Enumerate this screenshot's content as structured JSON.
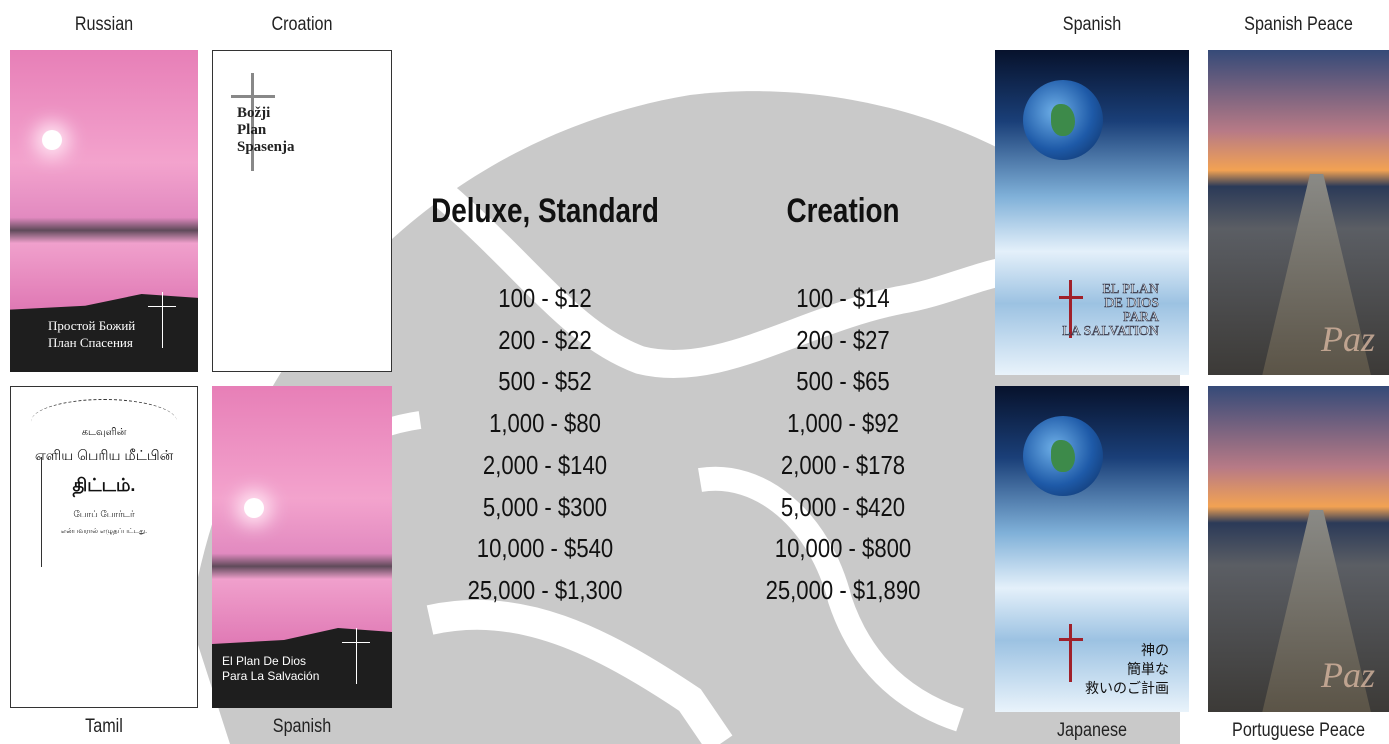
{
  "covers": [
    {
      "label": "Russian",
      "lines": [
        "Простой Божий",
        "План Спасения"
      ]
    },
    {
      "label": "Croation",
      "lines": [
        "Božji",
        "Plan",
        "Spasenja"
      ]
    },
    {
      "label": "Tamil",
      "lines": [
        "கடவுளின்",
        "எளிய பெரிய மீட்பின்",
        "திட்டம்.",
        "போப் போர்டர்",
        "என்பவரால் எழுதப்பட்டது."
      ]
    },
    {
      "label": "Spanish",
      "lines": [
        "El Plan De Dios",
        "Para La Salvación"
      ]
    },
    {
      "label": "Spanish",
      "lines": [
        "EL PLAN",
        "DE DIOS",
        "PARA",
        "LA SALVATION"
      ]
    },
    {
      "label": "Spanish Peace",
      "lines": [
        "Paz"
      ]
    },
    {
      "label": "Japanese",
      "lines": [
        "神の",
        "簡単な",
        "救いのご計画"
      ]
    },
    {
      "label": "Portuguese Peace",
      "lines": [
        "Paz"
      ]
    }
  ],
  "price_lists": [
    {
      "heading": "Deluxe, Standard",
      "rows": [
        "100 - $12",
        "200 - $22",
        "500 - $52",
        "1,000 - $80",
        "2,000 - $140",
        "5,000 - $300",
        "10,000 - $540",
        "25,000 - $1,300"
      ]
    },
    {
      "heading": "Creation",
      "rows": [
        "100 - $14",
        "200 - $27",
        "500 - $65",
        "1,000 - $92",
        "2,000 - $178",
        "5,000 - $420",
        "10,000 - $800",
        "25,000 - $1,890"
      ]
    }
  ]
}
